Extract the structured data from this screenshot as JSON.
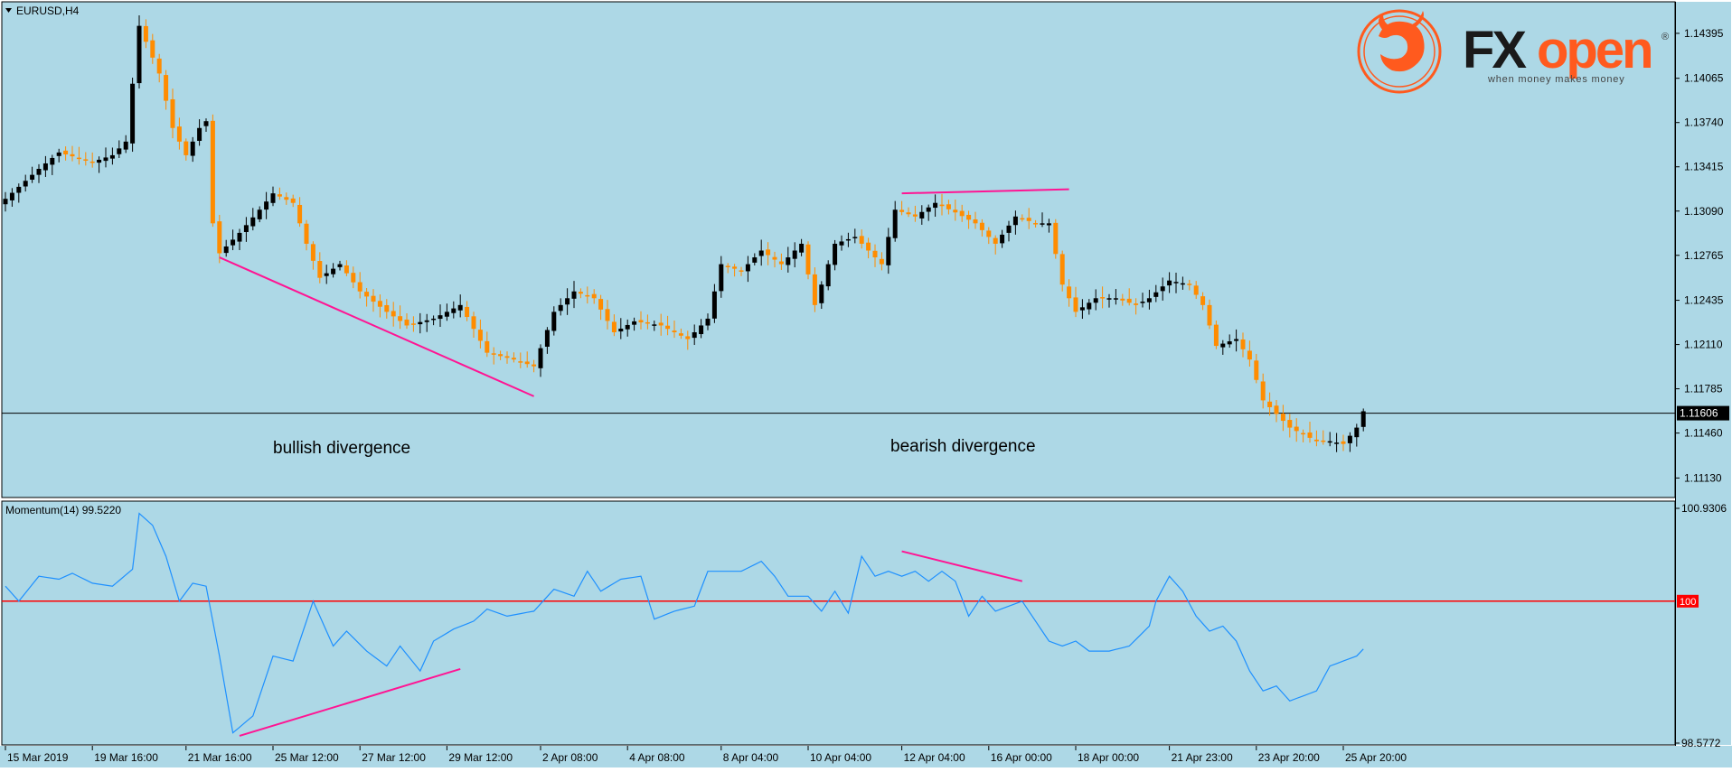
{
  "symbol_label": "EURUSD,H4",
  "indicator_label": "Momentum(14) 99.5220",
  "brand": {
    "name": "FXopen",
    "tagline": "when money makes money",
    "registered": "®"
  },
  "annotations": {
    "left": "bullish divergence",
    "right": "bearish divergence"
  },
  "colors": {
    "background": "#add8e6",
    "bull_candle": "#000000",
    "bear_candle": "#ff8c00",
    "momentum_line": "#1e90ff",
    "level_line": "#ff0000",
    "trendline": "#ff1493",
    "brand_orange": "#ff5a1e"
  },
  "current_price_label": "1.11606",
  "chart_data": [
    {
      "type": "candlestick",
      "title": "EURUSD,H4",
      "ylim": [
        1.11,
        1.146
      ],
      "y_ticks": [
        "1.14395",
        "1.14065",
        "1.13740",
        "1.13415",
        "1.13090",
        "1.12765",
        "1.12435",
        "1.12110",
        "1.11785",
        "1.11460",
        "1.11130"
      ],
      "current_price": 1.11606,
      "x_ticks": [
        "15 Mar 2019",
        "19 Mar 16:00",
        "21 Mar 16:00",
        "25 Mar 12:00",
        "27 Mar 12:00",
        "29 Mar 12:00",
        "2 Apr 08:00",
        "4 Apr 08:00",
        "8 Apr 04:00",
        "10 Apr 04:00",
        "12 Apr 04:00",
        "16 Apr 00:00",
        "18 Apr 00:00",
        "21 Apr 23:00",
        "23 Apr 20:00",
        "25 Apr 20:00"
      ],
      "close_anchors": [
        [
          0,
          1.1318
        ],
        [
          5,
          1.134
        ],
        [
          8,
          1.1352
        ],
        [
          13,
          1.1345
        ],
        [
          16,
          1.135
        ],
        [
          18,
          1.136
        ],
        [
          20,
          1.1445
        ],
        [
          23,
          1.141
        ],
        [
          25,
          1.137
        ],
        [
          27,
          1.135
        ],
        [
          29,
          1.137
        ],
        [
          30,
          1.1375
        ],
        [
          31,
          1.13
        ],
        [
          32,
          1.1278
        ],
        [
          35,
          1.1293
        ],
        [
          38,
          1.131
        ],
        [
          40,
          1.1322
        ],
        [
          43,
          1.1315
        ],
        [
          45,
          1.1285
        ],
        [
          47,
          1.126
        ],
        [
          50,
          1.127
        ],
        [
          53,
          1.125
        ],
        [
          57,
          1.1235
        ],
        [
          60,
          1.1225
        ],
        [
          64,
          1.123
        ],
        [
          68,
          1.124
        ],
        [
          72,
          1.1205
        ],
        [
          76,
          1.12
        ],
        [
          79,
          1.1195
        ],
        [
          82,
          1.1235
        ],
        [
          85,
          1.125
        ],
        [
          88,
          1.1245
        ],
        [
          91,
          1.122
        ],
        [
          94,
          1.1228
        ],
        [
          98,
          1.1225
        ],
        [
          102,
          1.1215
        ],
        [
          105,
          1.123
        ],
        [
          107,
          1.127
        ],
        [
          110,
          1.1265
        ],
        [
          113,
          1.128
        ],
        [
          116,
          1.127
        ],
        [
          119,
          1.1285
        ],
        [
          121,
          1.124
        ],
        [
          124,
          1.1285
        ],
        [
          127,
          1.129
        ],
        [
          129,
          1.128
        ],
        [
          131,
          1.127
        ],
        [
          133,
          1.131
        ],
        [
          136,
          1.1305
        ],
        [
          139,
          1.1315
        ],
        [
          142,
          1.1308
        ],
        [
          145,
          1.13
        ],
        [
          148,
          1.1285
        ],
        [
          151,
          1.1305
        ],
        [
          154,
          1.13
        ],
        [
          156,
          1.13
        ],
        [
          158,
          1.1255
        ],
        [
          160,
          1.1235
        ],
        [
          163,
          1.1245
        ],
        [
          166,
          1.1245
        ],
        [
          169,
          1.124
        ],
        [
          171,
          1.1245
        ],
        [
          174,
          1.1258
        ],
        [
          177,
          1.1255
        ],
        [
          179,
          1.124
        ],
        [
          181,
          1.121
        ],
        [
          184,
          1.1215
        ],
        [
          186,
          1.12
        ],
        [
          188,
          1.117
        ],
        [
          190,
          1.116
        ],
        [
          192,
          1.115
        ],
        [
          194,
          1.1145
        ],
        [
          196,
          1.114
        ],
        [
          198,
          1.114
        ],
        [
          200,
          1.1138
        ],
        [
          202,
          1.115
        ],
        [
          203,
          1.1162
        ]
      ],
      "trendlines": [
        {
          "from": [
            32,
            1.1275
          ],
          "to": [
            79,
            1.1173
          ]
        },
        {
          "from": [
            134,
            1.1322
          ],
          "to": [
            159,
            1.1325
          ]
        }
      ]
    },
    {
      "type": "line",
      "title": "Momentum(14) 99.5220",
      "ylim": [
        98.5772,
        100.9306
      ],
      "y_ticks": [
        "100.9306",
        "98.5772"
      ],
      "level": 100,
      "level_label": "100",
      "current_value": 99.522,
      "value_anchors": [
        [
          0,
          100.15
        ],
        [
          2,
          100.0
        ],
        [
          5,
          100.25
        ],
        [
          8,
          100.22
        ],
        [
          10,
          100.28
        ],
        [
          13,
          100.18
        ],
        [
          16,
          100.15
        ],
        [
          19,
          100.32
        ],
        [
          20,
          100.88
        ],
        [
          22,
          100.76
        ],
        [
          24,
          100.45
        ],
        [
          26,
          100.0
        ],
        [
          28,
          100.18
        ],
        [
          30,
          100.15
        ],
        [
          32,
          99.45
        ],
        [
          34,
          98.68
        ],
        [
          37,
          98.85
        ],
        [
          40,
          99.45
        ],
        [
          43,
          99.4
        ],
        [
          46,
          100.0
        ],
        [
          49,
          99.55
        ],
        [
          51,
          99.7
        ],
        [
          54,
          99.5
        ],
        [
          57,
          99.35
        ],
        [
          59,
          99.55
        ],
        [
          62,
          99.3
        ],
        [
          64,
          99.6
        ],
        [
          67,
          99.72
        ],
        [
          70,
          99.8
        ],
        [
          72,
          99.92
        ],
        [
          75,
          99.85
        ],
        [
          79,
          99.9
        ],
        [
          82,
          100.12
        ],
        [
          85,
          100.05
        ],
        [
          87,
          100.3
        ],
        [
          89,
          100.1
        ],
        [
          92,
          100.22
        ],
        [
          95,
          100.25
        ],
        [
          97,
          99.82
        ],
        [
          100,
          99.9
        ],
        [
          103,
          99.95
        ],
        [
          105,
          100.3
        ],
        [
          107,
          100.3
        ],
        [
          110,
          100.3
        ],
        [
          113,
          100.4
        ],
        [
          115,
          100.25
        ],
        [
          117,
          100.05
        ],
        [
          120,
          100.05
        ],
        [
          122,
          99.9
        ],
        [
          124,
          100.1
        ],
        [
          126,
          99.88
        ],
        [
          128,
          100.45
        ],
        [
          130,
          100.25
        ],
        [
          132,
          100.3
        ],
        [
          134,
          100.25
        ],
        [
          136,
          100.3
        ],
        [
          138,
          100.2
        ],
        [
          140,
          100.3
        ],
        [
          142,
          100.2
        ],
        [
          144,
          99.85
        ],
        [
          146,
          100.05
        ],
        [
          148,
          99.9
        ],
        [
          150,
          99.95
        ],
        [
          152,
          100.0
        ],
        [
          154,
          99.8
        ],
        [
          156,
          99.6
        ],
        [
          158,
          99.55
        ],
        [
          160,
          99.6
        ],
        [
          162,
          99.5
        ],
        [
          165,
          99.5
        ],
        [
          168,
          99.55
        ],
        [
          171,
          99.75
        ],
        [
          172,
          100.0
        ],
        [
          174,
          100.25
        ],
        [
          176,
          100.1
        ],
        [
          178,
          99.85
        ],
        [
          180,
          99.7
        ],
        [
          182,
          99.75
        ],
        [
          184,
          99.6
        ],
        [
          186,
          99.3
        ],
        [
          188,
          99.1
        ],
        [
          190,
          99.15
        ],
        [
          192,
          99.0
        ],
        [
          194,
          99.05
        ],
        [
          196,
          99.1
        ],
        [
          198,
          99.35
        ],
        [
          200,
          99.4
        ],
        [
          202,
          99.45
        ],
        [
          203,
          99.52
        ]
      ],
      "trendlines": [
        {
          "from": [
            35,
            98.65
          ],
          "to": [
            68,
            99.32
          ]
        },
        {
          "from": [
            134,
            100.5
          ],
          "to": [
            152,
            100.2
          ]
        }
      ]
    }
  ]
}
